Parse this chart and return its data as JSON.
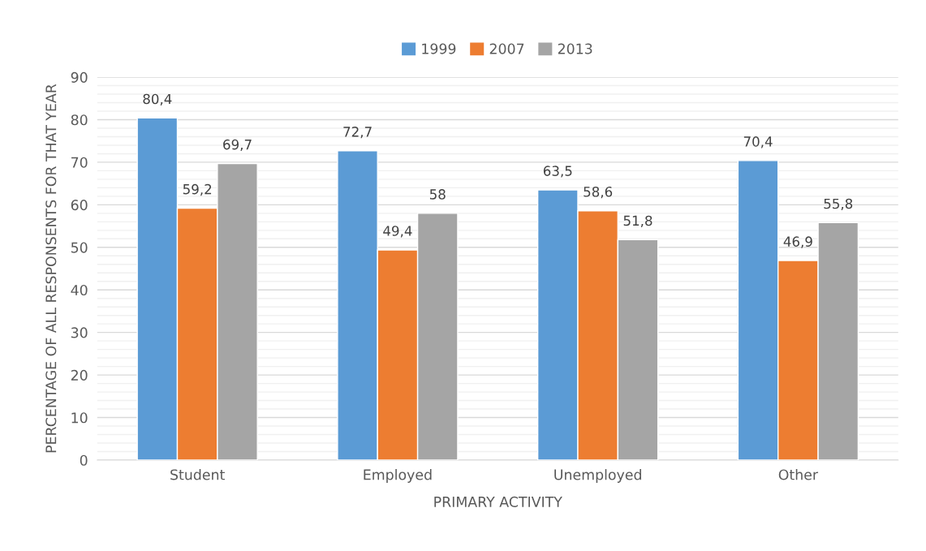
{
  "chart_data": {
    "type": "bar",
    "xlabel": "PRIMARY ACTIVITY",
    "ylabel": "PERCENTAGE OF ALL RESPONSENTS FOR THAT YEAR",
    "categories": [
      "Student",
      "Employed",
      "Unemployed",
      "Other"
    ],
    "series": [
      {
        "name": "1999",
        "color": "#5b9bd5",
        "values": [
          80.4,
          72.7,
          63.5,
          70.4
        ],
        "value_labels": [
          "80,4",
          "72,7",
          "63,5",
          "70,4"
        ]
      },
      {
        "name": "2007",
        "color": "#ed7d31",
        "values": [
          59.2,
          49.4,
          58.6,
          46.9
        ],
        "value_labels": [
          "59,2",
          "49,4",
          "58,6",
          "46,9"
        ]
      },
      {
        "name": "2013",
        "color": "#a5a5a5",
        "values": [
          69.7,
          58,
          51.8,
          55.8
        ],
        "value_labels": [
          "69,7",
          "58",
          "51,8",
          "55,8"
        ]
      }
    ],
    "ylim": [
      0,
      90
    ],
    "yticks": [
      0,
      {
        "value": 2,
        "label": null
      },
      {
        "value": 4,
        "label": null
      },
      {
        "value": 6,
        "label": null
      },
      {
        "value": 8,
        "label": null
      },
      10,
      {
        "value": 12,
        "label": null
      },
      {
        "value": 14,
        "label": null
      },
      {
        "value": 16,
        "label": null
      },
      {
        "value": 18,
        "label": null
      },
      20,
      {
        "value": 22,
        "label": null
      },
      {
        "value": 24,
        "label": null
      },
      {
        "value": 26,
        "label": null
      },
      {
        "value": 28,
        "label": null
      },
      30,
      {
        "value": 32,
        "label": null
      },
      {
        "value": 34,
        "label": null
      },
      {
        "value": 36,
        "label": null
      },
      {
        "value": 38,
        "label": null
      },
      40,
      {
        "value": 42,
        "label": null
      },
      {
        "value": 44,
        "label": null
      },
      {
        "value": 46,
        "label": null
      },
      {
        "value": 48,
        "label": null
      },
      50,
      {
        "value": 52,
        "label": null
      },
      {
        "value": 54,
        "label": null
      },
      {
        "value": 56,
        "label": null
      },
      {
        "value": 58,
        "label": null
      },
      60,
      {
        "value": 62,
        "label": null
      },
      {
        "value": 64,
        "label": null
      },
      {
        "value": 66,
        "label": null
      },
      {
        "value": 68,
        "label": null
      },
      70,
      {
        "value": 72,
        "label": null
      },
      {
        "value": 74,
        "label": null
      },
      {
        "value": 76,
        "label": null
      },
      {
        "value": 78,
        "label": null
      },
      80,
      {
        "value": 82,
        "label": null
      },
      {
        "value": 84,
        "label": null
      },
      {
        "value": 86,
        "label": null
      },
      {
        "value": 88,
        "label": null
      },
      90
    ],
    "grid": "y",
    "legend": "top"
  }
}
